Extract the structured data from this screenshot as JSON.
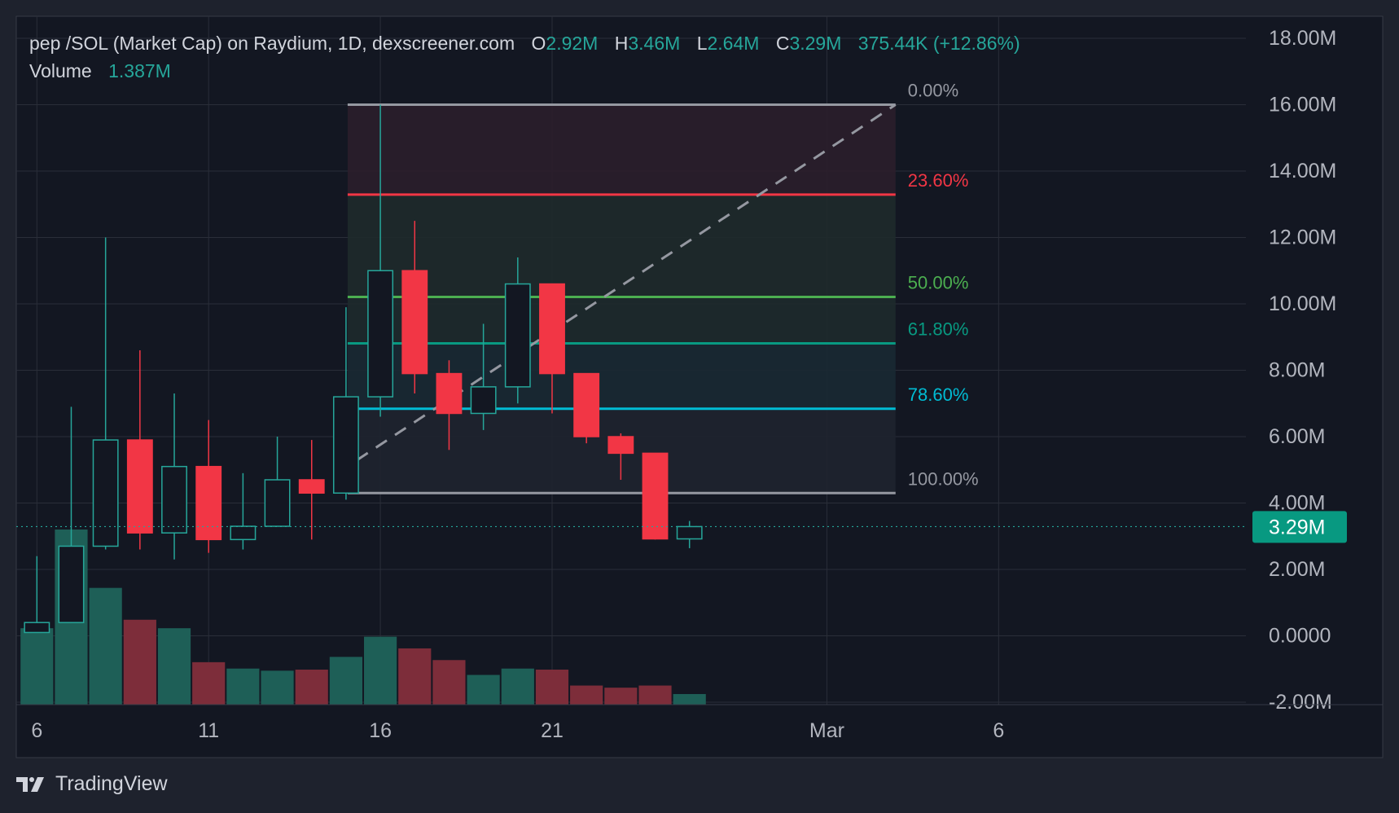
{
  "legend": {
    "symbol_title": "pep /SOL (Market Cap) on Raydium, 1D, dexscreener.com",
    "open_label": "O",
    "open_value": "2.92M",
    "high_label": "H",
    "high_value": "3.46M",
    "low_label": "L",
    "low_value": "2.64M",
    "close_label": "C",
    "close_value": "3.29M",
    "change": "375.44K (+12.86%)",
    "volume_label": "Volume",
    "volume_value": "1.387M"
  },
  "brand": {
    "name": "TradingView"
  },
  "colors": {
    "background": "#131722",
    "frame": "#1e222d",
    "grid": "#2a2e39",
    "up": "#26a69a",
    "down": "#f23645",
    "volume_up": "#1e5f57",
    "volume_down": "#7d2d3a",
    "axis_text": "#b2b5be",
    "last_price_bg": "#089981"
  },
  "chart_data": {
    "type": "candlestick",
    "title": "pep /SOL (Market Cap) on Raydium, 1D, dexscreener.com",
    "y_axis": {
      "unit": "market cap",
      "range": [
        -2000000,
        18000000
      ],
      "ticks": [
        18000000,
        16000000,
        14000000,
        12000000,
        10000000,
        8000000,
        6000000,
        4000000,
        2000000,
        0,
        -2000000
      ],
      "tick_labels": [
        "18.00M",
        "16.00M",
        "14.00M",
        "12.00M",
        "10.00M",
        "8.00M",
        "6.00M",
        "4.00M",
        "2.00M",
        "0.0000",
        "-2.00M"
      ]
    },
    "x_axis": {
      "range_day_index": [
        -0.6,
        35.2
      ],
      "ticks": [
        {
          "day": 0,
          "label": "6"
        },
        {
          "day": 5,
          "label": "11"
        },
        {
          "day": 10,
          "label": "16"
        },
        {
          "day": 15,
          "label": "21"
        },
        {
          "day": 23,
          "label": "Mar"
        },
        {
          "day": 28,
          "label": "6"
        }
      ]
    },
    "candles": [
      {
        "day": 0,
        "open": 0.1,
        "high": 2.4,
        "low": 0.1,
        "close": 0.4
      },
      {
        "day": 1,
        "open": 0.4,
        "high": 6.9,
        "low": 0.4,
        "close": 2.7
      },
      {
        "day": 2,
        "open": 2.7,
        "high": 12.0,
        "low": 2.6,
        "close": 5.9
      },
      {
        "day": 3,
        "open": 5.9,
        "high": 8.6,
        "low": 2.6,
        "close": 3.1
      },
      {
        "day": 4,
        "open": 3.1,
        "high": 7.3,
        "low": 2.3,
        "close": 5.1
      },
      {
        "day": 5,
        "open": 5.1,
        "high": 6.5,
        "low": 2.5,
        "close": 2.9
      },
      {
        "day": 6,
        "open": 2.9,
        "high": 4.9,
        "low": 2.6,
        "close": 3.3
      },
      {
        "day": 7,
        "open": 3.3,
        "high": 6.0,
        "low": 3.3,
        "close": 4.7
      },
      {
        "day": 8,
        "open": 4.7,
        "high": 5.9,
        "low": 2.9,
        "close": 4.3
      },
      {
        "day": 9,
        "open": 4.3,
        "high": 9.9,
        "low": 4.1,
        "close": 7.2
      },
      {
        "day": 10,
        "open": 7.2,
        "high": 16.0,
        "low": 6.6,
        "close": 11.0
      },
      {
        "day": 11,
        "open": 11.0,
        "high": 12.5,
        "low": 7.3,
        "close": 7.9
      },
      {
        "day": 12,
        "open": 7.9,
        "high": 8.3,
        "low": 5.6,
        "close": 6.7
      },
      {
        "day": 13,
        "open": 6.7,
        "high": 9.4,
        "low": 6.2,
        "close": 7.5
      },
      {
        "day": 14,
        "open": 7.5,
        "high": 11.4,
        "low": 7.0,
        "close": 10.6
      },
      {
        "day": 15,
        "open": 10.6,
        "high": 10.6,
        "low": 6.7,
        "close": 7.9
      },
      {
        "day": 16,
        "open": 7.9,
        "high": 7.9,
        "low": 5.8,
        "close": 6.0
      },
      {
        "day": 17,
        "open": 6.0,
        "high": 6.1,
        "low": 4.7,
        "close": 5.5
      },
      {
        "day": 18,
        "open": 5.5,
        "high": 5.5,
        "low": 2.9,
        "close": 2.92
      },
      {
        "day": 19,
        "open": 2.92,
        "high": 3.46,
        "low": 2.64,
        "close": 3.29
      }
    ],
    "volume": {
      "latest": "1.387M",
      "bars": [
        {
          "day": 0,
          "rel": 0.72,
          "dir": "up"
        },
        {
          "day": 1,
          "rel": 1.65,
          "dir": "up"
        },
        {
          "day": 2,
          "rel": 1.1,
          "dir": "up"
        },
        {
          "day": 3,
          "rel": 0.8,
          "dir": "down"
        },
        {
          "day": 4,
          "rel": 0.72,
          "dir": "up"
        },
        {
          "day": 5,
          "rel": 0.4,
          "dir": "down"
        },
        {
          "day": 6,
          "rel": 0.34,
          "dir": "up"
        },
        {
          "day": 7,
          "rel": 0.32,
          "dir": "up"
        },
        {
          "day": 8,
          "rel": 0.33,
          "dir": "down"
        },
        {
          "day": 9,
          "rel": 0.45,
          "dir": "up"
        },
        {
          "day": 10,
          "rel": 0.64,
          "dir": "up"
        },
        {
          "day": 11,
          "rel": 0.53,
          "dir": "down"
        },
        {
          "day": 12,
          "rel": 0.42,
          "dir": "down"
        },
        {
          "day": 13,
          "rel": 0.28,
          "dir": "up"
        },
        {
          "day": 14,
          "rel": 0.34,
          "dir": "up"
        },
        {
          "day": 15,
          "rel": 0.33,
          "dir": "down"
        },
        {
          "day": 16,
          "rel": 0.18,
          "dir": "down"
        },
        {
          "day": 17,
          "rel": 0.16,
          "dir": "down"
        },
        {
          "day": 18,
          "rel": 0.18,
          "dir": "down"
        },
        {
          "day": 19,
          "rel": 0.1,
          "dir": "up"
        }
      ]
    },
    "fibonacci": {
      "from": {
        "day": 9,
        "price": 4.3
      },
      "to": {
        "day": 25,
        "price": 16.0
      },
      "levels": [
        {
          "pct": "0.00%",
          "price": 16.0,
          "color": "#9598a1"
        },
        {
          "pct": "23.60%",
          "price": 13.29,
          "color": "#f23645"
        },
        {
          "pct": "50.00%",
          "price": 10.21,
          "color": "#4caf50"
        },
        {
          "pct": "61.80%",
          "price": 8.81,
          "color": "#089981"
        },
        {
          "pct": "78.60%",
          "price": 6.84,
          "color": "#00bcd4"
        },
        {
          "pct": "100.00%",
          "price": 4.3,
          "color": "#9598a1"
        }
      ],
      "zone_colors": [
        "#2b1e2b",
        "#1f2a2b",
        "#1e2a2c",
        "#1a2933",
        "#1f232f"
      ]
    },
    "last_price": {
      "value": 3.29,
      "label": "3.29M"
    },
    "price_scale_unit": 1000000
  }
}
